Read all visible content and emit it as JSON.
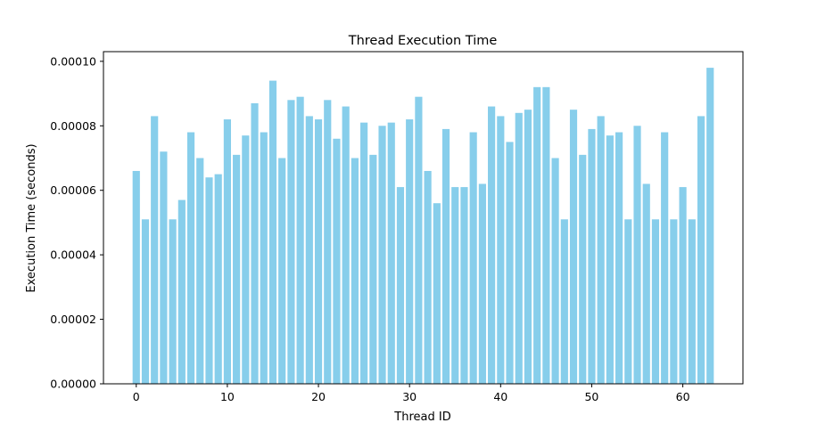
{
  "chart_data": {
    "type": "bar",
    "title": "Thread Execution Time",
    "xlabel": "Thread ID",
    "ylabel": "Execution Time (seconds)",
    "bar_color": "#87ceeb",
    "x_ticks": [
      0,
      10,
      20,
      30,
      40,
      50,
      60
    ],
    "x_tick_labels": [
      "0",
      "10",
      "20",
      "30",
      "40",
      "50",
      "60"
    ],
    "y_ticks": [
      0,
      2e-05,
      4e-05,
      6e-05,
      8e-05,
      0.0001
    ],
    "y_tick_labels": [
      "0.00000",
      "0.00002",
      "0.00004",
      "0.00006",
      "0.00008",
      "0.00010"
    ],
    "xlim": [
      -3.6,
      66.6
    ],
    "ylim": [
      0,
      0.000103
    ],
    "x": [
      0,
      1,
      2,
      3,
      4,
      5,
      6,
      7,
      8,
      9,
      10,
      11,
      12,
      13,
      14,
      15,
      16,
      17,
      18,
      19,
      20,
      21,
      22,
      23,
      24,
      25,
      26,
      27,
      28,
      29,
      30,
      31,
      32,
      33,
      34,
      35,
      36,
      37,
      38,
      39,
      40,
      41,
      42,
      43,
      44,
      45,
      46,
      47,
      48,
      49,
      50,
      51,
      52,
      53,
      54,
      55,
      56,
      57,
      58,
      59,
      60,
      61,
      62,
      63
    ],
    "values": [
      6.6e-05,
      5.1e-05,
      8.3e-05,
      7.2e-05,
      5.1e-05,
      5.7e-05,
      7.8e-05,
      7e-05,
      6.4e-05,
      6.5e-05,
      8.2e-05,
      7.1e-05,
      7.7e-05,
      8.7e-05,
      7.8e-05,
      9.4e-05,
      7e-05,
      8.8e-05,
      8.9e-05,
      8.3e-05,
      8.2e-05,
      8.8e-05,
      7.6e-05,
      8.6e-05,
      7e-05,
      8.1e-05,
      7.1e-05,
      8e-05,
      8.1e-05,
      6.1e-05,
      8.2e-05,
      8.9e-05,
      6.6e-05,
      5.6e-05,
      7.9e-05,
      6.1e-05,
      6.1e-05,
      7.8e-05,
      6.2e-05,
      8.6e-05,
      8.3e-05,
      7.5e-05,
      8.4e-05,
      8.5e-05,
      9.2e-05,
      9.2e-05,
      7e-05,
      5.1e-05,
      8.5e-05,
      7.1e-05,
      7.9e-05,
      8.3e-05,
      7.7e-05,
      7.8e-05,
      5.1e-05,
      8e-05,
      6.2e-05,
      5.1e-05,
      7.8e-05,
      5.1e-05,
      6.1e-05,
      5.1e-05,
      8.3e-05,
      9.8e-05
    ],
    "grid": false,
    "legend": "none"
  }
}
